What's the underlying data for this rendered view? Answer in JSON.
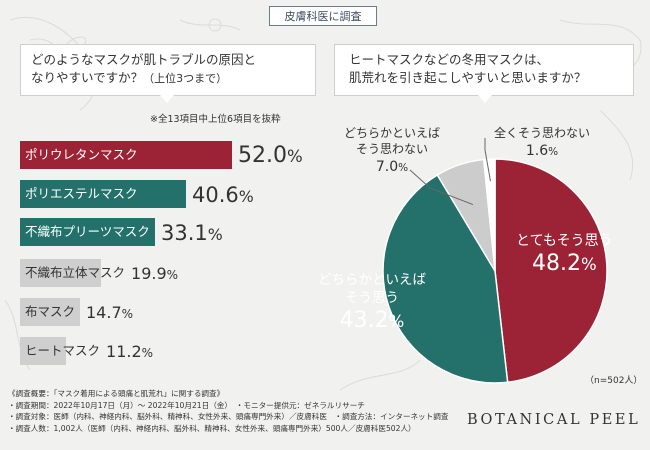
{
  "header": {
    "tag": "皮膚科医に調査"
  },
  "left": {
    "question": "どのようなマスクが肌トラブルの原因となりやすいですか？（上位3つまで）",
    "question_line1": "どのようなマスクが肌トラブルの原因と",
    "question_line2": "なりやすいですか？",
    "question_suffix": "（上位3つまで）",
    "note": "※全13項目中上位6項目を抜粋"
  },
  "right": {
    "question_line1": "ヒートマスクなどの冬用マスクは、",
    "question_line2": "肌荒れを引き起こしやすいと思いますか？",
    "n_note": "（n=502人）"
  },
  "colors": {
    "accent_red": "#9b2335",
    "accent_teal": "#24706a",
    "gray_bar": "#cfcfcf",
    "gray_slice": "#cccccc",
    "white_slice": "#ffffff"
  },
  "chart_data": [
    {
      "type": "bar",
      "orientation": "horizontal",
      "categories": [
        "ポリウレタンマスク",
        "ポリエステルマスク",
        "不織布プリーツマスク",
        "不織布立体マスク",
        "布マスク",
        "ヒートマスク"
      ],
      "values": [
        52.0,
        40.6,
        33.1,
        19.9,
        14.7,
        11.2
      ],
      "value_labels": [
        "52.0",
        "40.6",
        "33.1",
        "19.9",
        "14.7",
        "11.2"
      ],
      "unit": "%",
      "colors": [
        "#9b2335",
        "#24706a",
        "#24706a",
        "#cfcfcf",
        "#cfcfcf",
        "#cfcfcf"
      ]
    },
    {
      "type": "pie",
      "categories": [
        "とてもそう思う",
        "どちらかといえばそう思う",
        "どちらかといえばそう思わない",
        "全くそう思わない"
      ],
      "label_lines": [
        [
          "とてもそう思う"
        ],
        [
          "どちらかといえば",
          "そう思う"
        ],
        [
          "どちらかといえば",
          "そう思わない"
        ],
        [
          "全くそう思わない"
        ]
      ],
      "values": [
        48.2,
        43.2,
        7.0,
        1.6
      ],
      "value_labels": [
        "48.2",
        "43.2",
        "7.0",
        "1.6"
      ],
      "unit": "%",
      "colors": [
        "#9b2335",
        "#24706a",
        "#cccccc",
        "#ffffff"
      ]
    }
  ],
  "footer": {
    "lines": [
      "《調査概要：「マスク着用による頭痛と肌荒れ」に関する調査》",
      "・調査期間：2022年10月17日（月）～ 2022年10月21日（金）　・モニター提供元：ゼネラルリサーチ",
      "・調査対象：医師（内科、神経内科、脳外科、精神科、女性外来、頭痛専門外来）／皮膚科医　・調査方法：インターネット調査",
      "・調査人数：1,002人（医師（内科、神経内科、脳外科、精神科、女性外来、頭痛専門外来）500人／皮膚科医502人）"
    ]
  },
  "brand": {
    "name": "BOTANICAL PEEL"
  }
}
